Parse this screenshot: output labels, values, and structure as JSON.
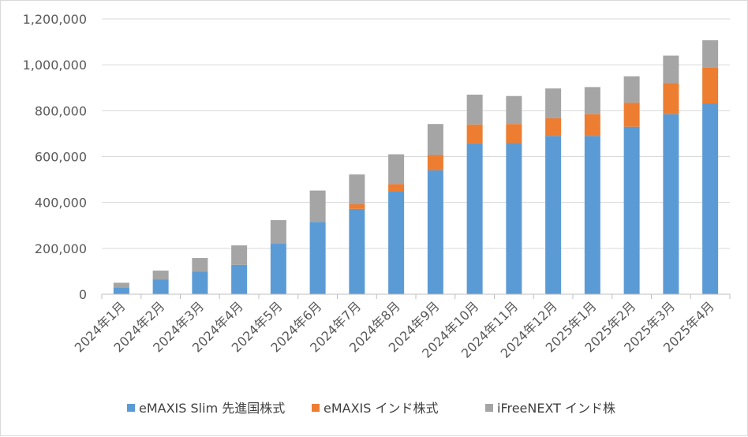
{
  "chart_data": {
    "type": "bar",
    "stacked": true,
    "title": "",
    "xlabel": "",
    "ylabel": "",
    "ylim": [
      0,
      1200000
    ],
    "y_ticks": [
      0,
      200000,
      400000,
      600000,
      800000,
      1000000,
      1200000
    ],
    "y_tick_labels": [
      "0",
      "200,000",
      "400,000",
      "600,000",
      "800,000",
      "1,000,000",
      "1,200,000"
    ],
    "grid": true,
    "legend_position": "bottom",
    "categories": [
      "2024年1月",
      "2024年2月",
      "2024年3月",
      "2024年4月",
      "2024年5月",
      "2024年6月",
      "2024年7月",
      "2024年8月",
      "2024年9月",
      "2024年10月",
      "2024年11月",
      "2024年12月",
      "2025年1月",
      "2025年2月",
      "2025年3月",
      "2025年4月"
    ],
    "series": [
      {
        "name": "eMAXIS Slim 先進国株式",
        "color": "#5b9bd5",
        "values": [
          30000,
          65000,
          98000,
          128000,
          220000,
          315000,
          372000,
          447000,
          540000,
          657000,
          660000,
          690000,
          690000,
          730000,
          785000,
          832000
        ]
      },
      {
        "name": "eMAXIS インド株式",
        "color": "#ed7d31",
        "values": [
          0,
          0,
          0,
          0,
          0,
          0,
          20000,
          33000,
          67000,
          83000,
          82000,
          77000,
          95000,
          105000,
          135000,
          155000
        ]
      },
      {
        "name": "iFreeNEXT インド株",
        "color": "#a5a5a5",
        "values": [
          20000,
          38000,
          60000,
          85000,
          103000,
          137000,
          130000,
          130000,
          135000,
          130000,
          122000,
          130000,
          118000,
          115000,
          120000,
          120000
        ]
      }
    ]
  }
}
